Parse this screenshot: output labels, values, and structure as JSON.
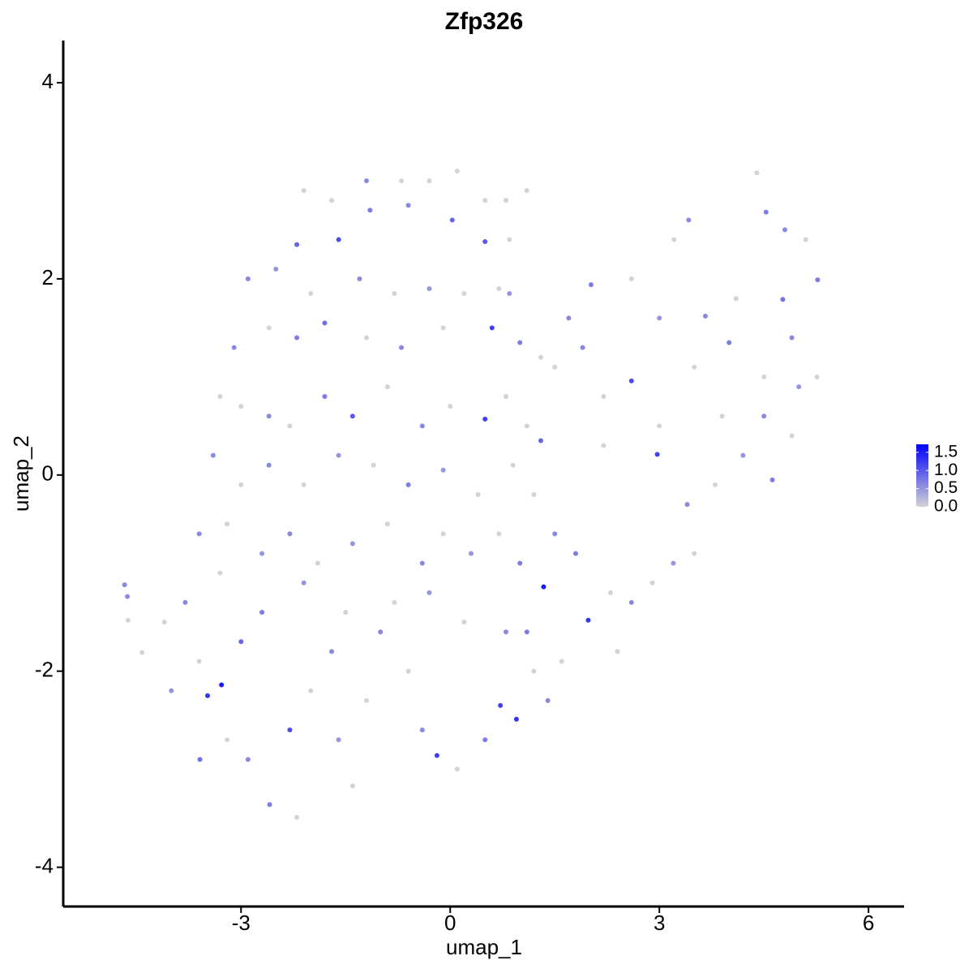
{
  "chart_data": {
    "type": "scatter",
    "title": "Zfp326",
    "x_label": "umap_1",
    "y_label": "umap_2",
    "xlim": [
      -5.55,
      6.51
    ],
    "ylim": [
      -4.4,
      4.43
    ],
    "xticks": [
      -3,
      0,
      3,
      6
    ],
    "yticks": [
      -4,
      -2,
      0,
      2,
      4
    ],
    "colorbar": {
      "lim": [
        0,
        1.72
      ],
      "ticks": [
        {
          "value": 0,
          "label": "0.0"
        },
        0.5,
        {
          "value": 1,
          "label": "1.0"
        },
        1.5
      ],
      "low_color": "#d3d3d3",
      "high_color": "#0000ff"
    },
    "x": [
      -2.1,
      -1.7,
      -1.2,
      -0.7,
      -0.3,
      0.1,
      0.5,
      0.8,
      -2.2,
      -1.6,
      -1.15,
      -0.6,
      0.03,
      0.5,
      0.85,
      1.1,
      -2.9,
      -2.5,
      -2.0,
      -1.3,
      -0.8,
      -0.3,
      0.2,
      0.7,
      0.85,
      -3.1,
      -2.6,
      -2.2,
      -1.8,
      -1.2,
      -0.7,
      -0.1,
      0.6,
      1.0,
      1.3,
      -3.3,
      -3.0,
      -2.6,
      -2.3,
      -1.8,
      -1.4,
      -0.9,
      -0.4,
      0.0,
      0.5,
      0.8,
      1.1,
      1.3,
      -3.4,
      -3.0,
      -2.6,
      -2.1,
      -1.6,
      -1.1,
      -0.6,
      -0.1,
      0.4,
      0.9,
      1.2,
      -3.6,
      -3.2,
      -2.7,
      -2.3,
      -1.9,
      -1.4,
      -0.9,
      -0.4,
      -0.1,
      0.3,
      0.7,
      1.34,
      1.0,
      -4.67,
      -4.63,
      -4.62,
      -4.42,
      -4.1,
      -3.8,
      -4.0,
      -3.6,
      -3.28,
      -3.48,
      -3.0,
      -2.7,
      -3.2,
      -3.59,
      -2.9,
      -2.59,
      -2.2,
      -2.3,
      -2.0,
      -1.7,
      -1.4,
      -1.6,
      -1.2,
      -1.0,
      -0.6,
      -0.4,
      -0.19,
      0.1,
      0.5,
      0.72,
      0.95,
      0.8,
      0.2,
      -0.3,
      -0.8,
      -1.5,
      -2.1,
      -3.3,
      1.2,
      1.4,
      1.1,
      1.6,
      1.5,
      1.8,
      1.98,
      2.3,
      2.6,
      2.4,
      2.9,
      3.2,
      3.5,
      3.4,
      3.8,
      4.2,
      4.62,
      4.9,
      5.0,
      5.26,
      4.5,
      3.9,
      2.97,
      2.6,
      2.2,
      1.9,
      1.5,
      1.7,
      2.02,
      2.6,
      3.21,
      3.42,
      3.0,
      3.66,
      4.0,
      3.5,
      4.1,
      4.53,
      4.77,
      4.4,
      4.8,
      5.27,
      5.1,
      4.9,
      4.5,
      2.2,
      3.0
    ],
    "y": [
      2.9,
      2.8,
      3.0,
      3.0,
      3.0,
      3.1,
      2.8,
      2.8,
      2.35,
      2.4,
      2.7,
      2.75,
      2.6,
      2.38,
      2.4,
      2.9,
      2.0,
      2.1,
      1.85,
      2.0,
      1.85,
      1.9,
      1.85,
      1.9,
      1.85,
      1.3,
      1.5,
      1.4,
      1.55,
      1.4,
      1.3,
      1.5,
      1.5,
      1.35,
      1.2,
      0.8,
      0.7,
      0.6,
      0.5,
      0.8,
      0.6,
      0.9,
      0.5,
      0.7,
      0.57,
      0.8,
      0.5,
      0.35,
      0.2,
      -0.1,
      0.1,
      -0.1,
      0.2,
      0.1,
      -0.1,
      0.05,
      -0.2,
      0.1,
      -0.2,
      -0.6,
      -0.5,
      -0.8,
      -0.6,
      -0.9,
      -0.7,
      -0.5,
      -0.9,
      -0.6,
      -0.8,
      -0.6,
      -1.14,
      -0.9,
      -1.12,
      -1.24,
      -1.48,
      -1.81,
      -1.5,
      -1.3,
      -2.2,
      -1.9,
      -2.14,
      -2.25,
      -1.7,
      -1.4,
      -2.7,
      -2.9,
      -2.9,
      -3.36,
      -3.49,
      -2.6,
      -2.2,
      -1.8,
      -3.17,
      -2.7,
      -2.3,
      -1.6,
      -2.0,
      -2.6,
      -2.86,
      -3.0,
      -2.7,
      -2.35,
      -2.49,
      -1.6,
      -1.5,
      -1.2,
      -1.3,
      -1.4,
      -1.1,
      -1.0,
      -2.0,
      -2.3,
      -1.6,
      -1.9,
      -0.6,
      -0.8,
      -1.48,
      -1.2,
      -1.3,
      -1.8,
      -1.1,
      -0.9,
      -0.8,
      -0.3,
      -0.1,
      0.2,
      -0.05,
      0.4,
      0.9,
      1.0,
      0.6,
      0.6,
      0.21,
      0.96,
      0.8,
      1.3,
      1.1,
      1.6,
      1.94,
      2.0,
      2.4,
      2.6,
      1.6,
      1.62,
      1.35,
      1.1,
      1.8,
      2.68,
      1.79,
      3.08,
      2.5,
      1.99,
      2.4,
      1.4,
      1.0,
      0.3,
      0.5
    ],
    "values": [
      0,
      0,
      0.6,
      0,
      0,
      0,
      0,
      0,
      0.9,
      1.1,
      0.7,
      0.6,
      0.9,
      1.0,
      0,
      0,
      0.6,
      0.5,
      0,
      0.6,
      0,
      0.5,
      0,
      0,
      0.5,
      0.6,
      0,
      0.7,
      0.8,
      0,
      0.6,
      0,
      1.2,
      0.7,
      0,
      0,
      0,
      0.6,
      0,
      0.7,
      1.0,
      0,
      0.6,
      0,
      1.2,
      0,
      0,
      0.9,
      0.6,
      0,
      0.6,
      0,
      0.5,
      0,
      0.7,
      0.5,
      0,
      0,
      0,
      0.6,
      0,
      0.5,
      0.6,
      0,
      0.5,
      0,
      0.6,
      0,
      0.5,
      0,
      1.5,
      0.7,
      0.6,
      0.6,
      0,
      0,
      0,
      0.6,
      0.5,
      0,
      1.5,
      1.3,
      0.9,
      0.7,
      0,
      0.8,
      0.6,
      0.7,
      0,
      1.1,
      0,
      0.6,
      0,
      0.5,
      0,
      0.6,
      0,
      0.6,
      1.2,
      0,
      0.7,
      1.2,
      1.3,
      0.6,
      0,
      0.5,
      0,
      0,
      0.5,
      0,
      0,
      0.6,
      0.7,
      0,
      0.6,
      0.7,
      1.3,
      0,
      0.6,
      0,
      0,
      0.5,
      0,
      0.6,
      0,
      0.5,
      0.7,
      0,
      0.5,
      0,
      0.6,
      0,
      1.2,
      1.1,
      0,
      0.6,
      0,
      0.6,
      0.7,
      0,
      0,
      0.6,
      0.5,
      0.6,
      0.7,
      0,
      0,
      0.7,
      0.8,
      0,
      0.6,
      0.7,
      0,
      0.6,
      0,
      0,
      0
    ]
  }
}
